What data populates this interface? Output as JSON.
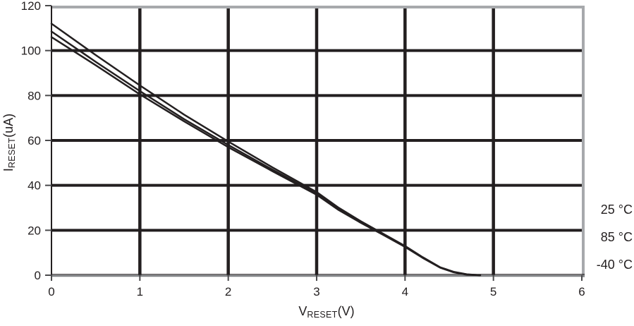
{
  "chart_data": {
    "type": "line",
    "title": "",
    "xlabel": {
      "main": "V",
      "sub": "RESET",
      "unit": "(V)"
    },
    "ylabel": {
      "main": "I",
      "sub": "RESET",
      "unit": "(uA)"
    },
    "xlim": [
      0,
      6
    ],
    "ylim": [
      0,
      120
    ],
    "x_ticks": [
      0,
      1,
      2,
      3,
      4,
      5,
      6
    ],
    "y_ticks": [
      0,
      20,
      40,
      60,
      80,
      100,
      120
    ],
    "grid": true,
    "legend_position": "right-outside",
    "x": [
      0,
      0.5,
      1,
      1.5,
      2,
      2.5,
      3,
      3.25,
      3.5,
      3.75,
      4,
      4.2,
      4.4,
      4.55,
      4.7,
      4.85
    ],
    "series": [
      {
        "name": "25 °C",
        "values": [
          112,
          98,
          84.5,
          71.5,
          59.5,
          48,
          37,
          30,
          24,
          18.5,
          13,
          8,
          3.5,
          1.5,
          0.4,
          0
        ]
      },
      {
        "name": "85 °C",
        "values": [
          108.5,
          95,
          82,
          69.5,
          58,
          47,
          36.3,
          29.5,
          23.6,
          18.2,
          12.8,
          7.8,
          3.4,
          1.4,
          0.3,
          0
        ]
      },
      {
        "name": "-40 °C",
        "values": [
          106,
          93.5,
          80.5,
          68.5,
          57,
          46.3,
          35.8,
          29,
          23.3,
          18,
          12.6,
          7.7,
          3.3,
          1.3,
          0.2,
          0
        ]
      }
    ],
    "colors": {
      "line": "#231f20",
      "grid": "#231f20",
      "border": "#a7a9ac",
      "axis": "#4a4a4c",
      "text": "#231f20",
      "background": "#ffffff"
    }
  }
}
